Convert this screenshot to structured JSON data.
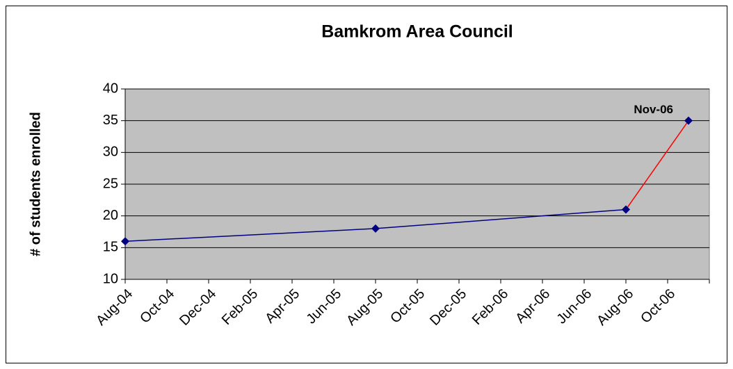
{
  "chart_data": {
    "type": "line",
    "title": "Bamkrom Area Council",
    "y_label": "# of students enrolled",
    "x": [
      "2004-08",
      "2005-08",
      "2006-08",
      "2006-11"
    ],
    "series": [
      {
        "color": "#000080",
        "values": [
          16,
          18,
          21,
          35
        ],
        "segment_colors": [
          "#000080",
          "#000080",
          "#ff0000"
        ]
      }
    ],
    "annotations": [
      {
        "text": "Nov-06"
      }
    ],
    "xlim": [
      "2004-08",
      "2006-12"
    ],
    "xticks": [
      {
        "value": "2004-08",
        "label": "Aug-04"
      },
      {
        "value": "2004-10",
        "label": "Oct-04"
      },
      {
        "value": "2004-12",
        "label": "Dec-04"
      },
      {
        "value": "2005-02",
        "label": "Feb-05"
      },
      {
        "value": "2005-04",
        "label": "Apr-05"
      },
      {
        "value": "2005-06",
        "label": "Jun-05"
      },
      {
        "value": "2005-08",
        "label": "Aug-05"
      },
      {
        "value": "2005-10",
        "label": "Oct-05"
      },
      {
        "value": "2005-12",
        "label": "Dec-05"
      },
      {
        "value": "2006-02",
        "label": "Feb-06"
      },
      {
        "value": "2006-04",
        "label": "Apr-06"
      },
      {
        "value": "2006-06",
        "label": "Jun-06"
      },
      {
        "value": "2006-08",
        "label": "Aug-06"
      },
      {
        "value": "2006-10",
        "label": "Oct-06"
      }
    ],
    "ylim": [
      10,
      40
    ],
    "yticks": [
      10,
      15,
      20,
      25,
      30,
      35,
      40
    ],
    "grid": true,
    "plot_background": "#c0c0c0"
  }
}
